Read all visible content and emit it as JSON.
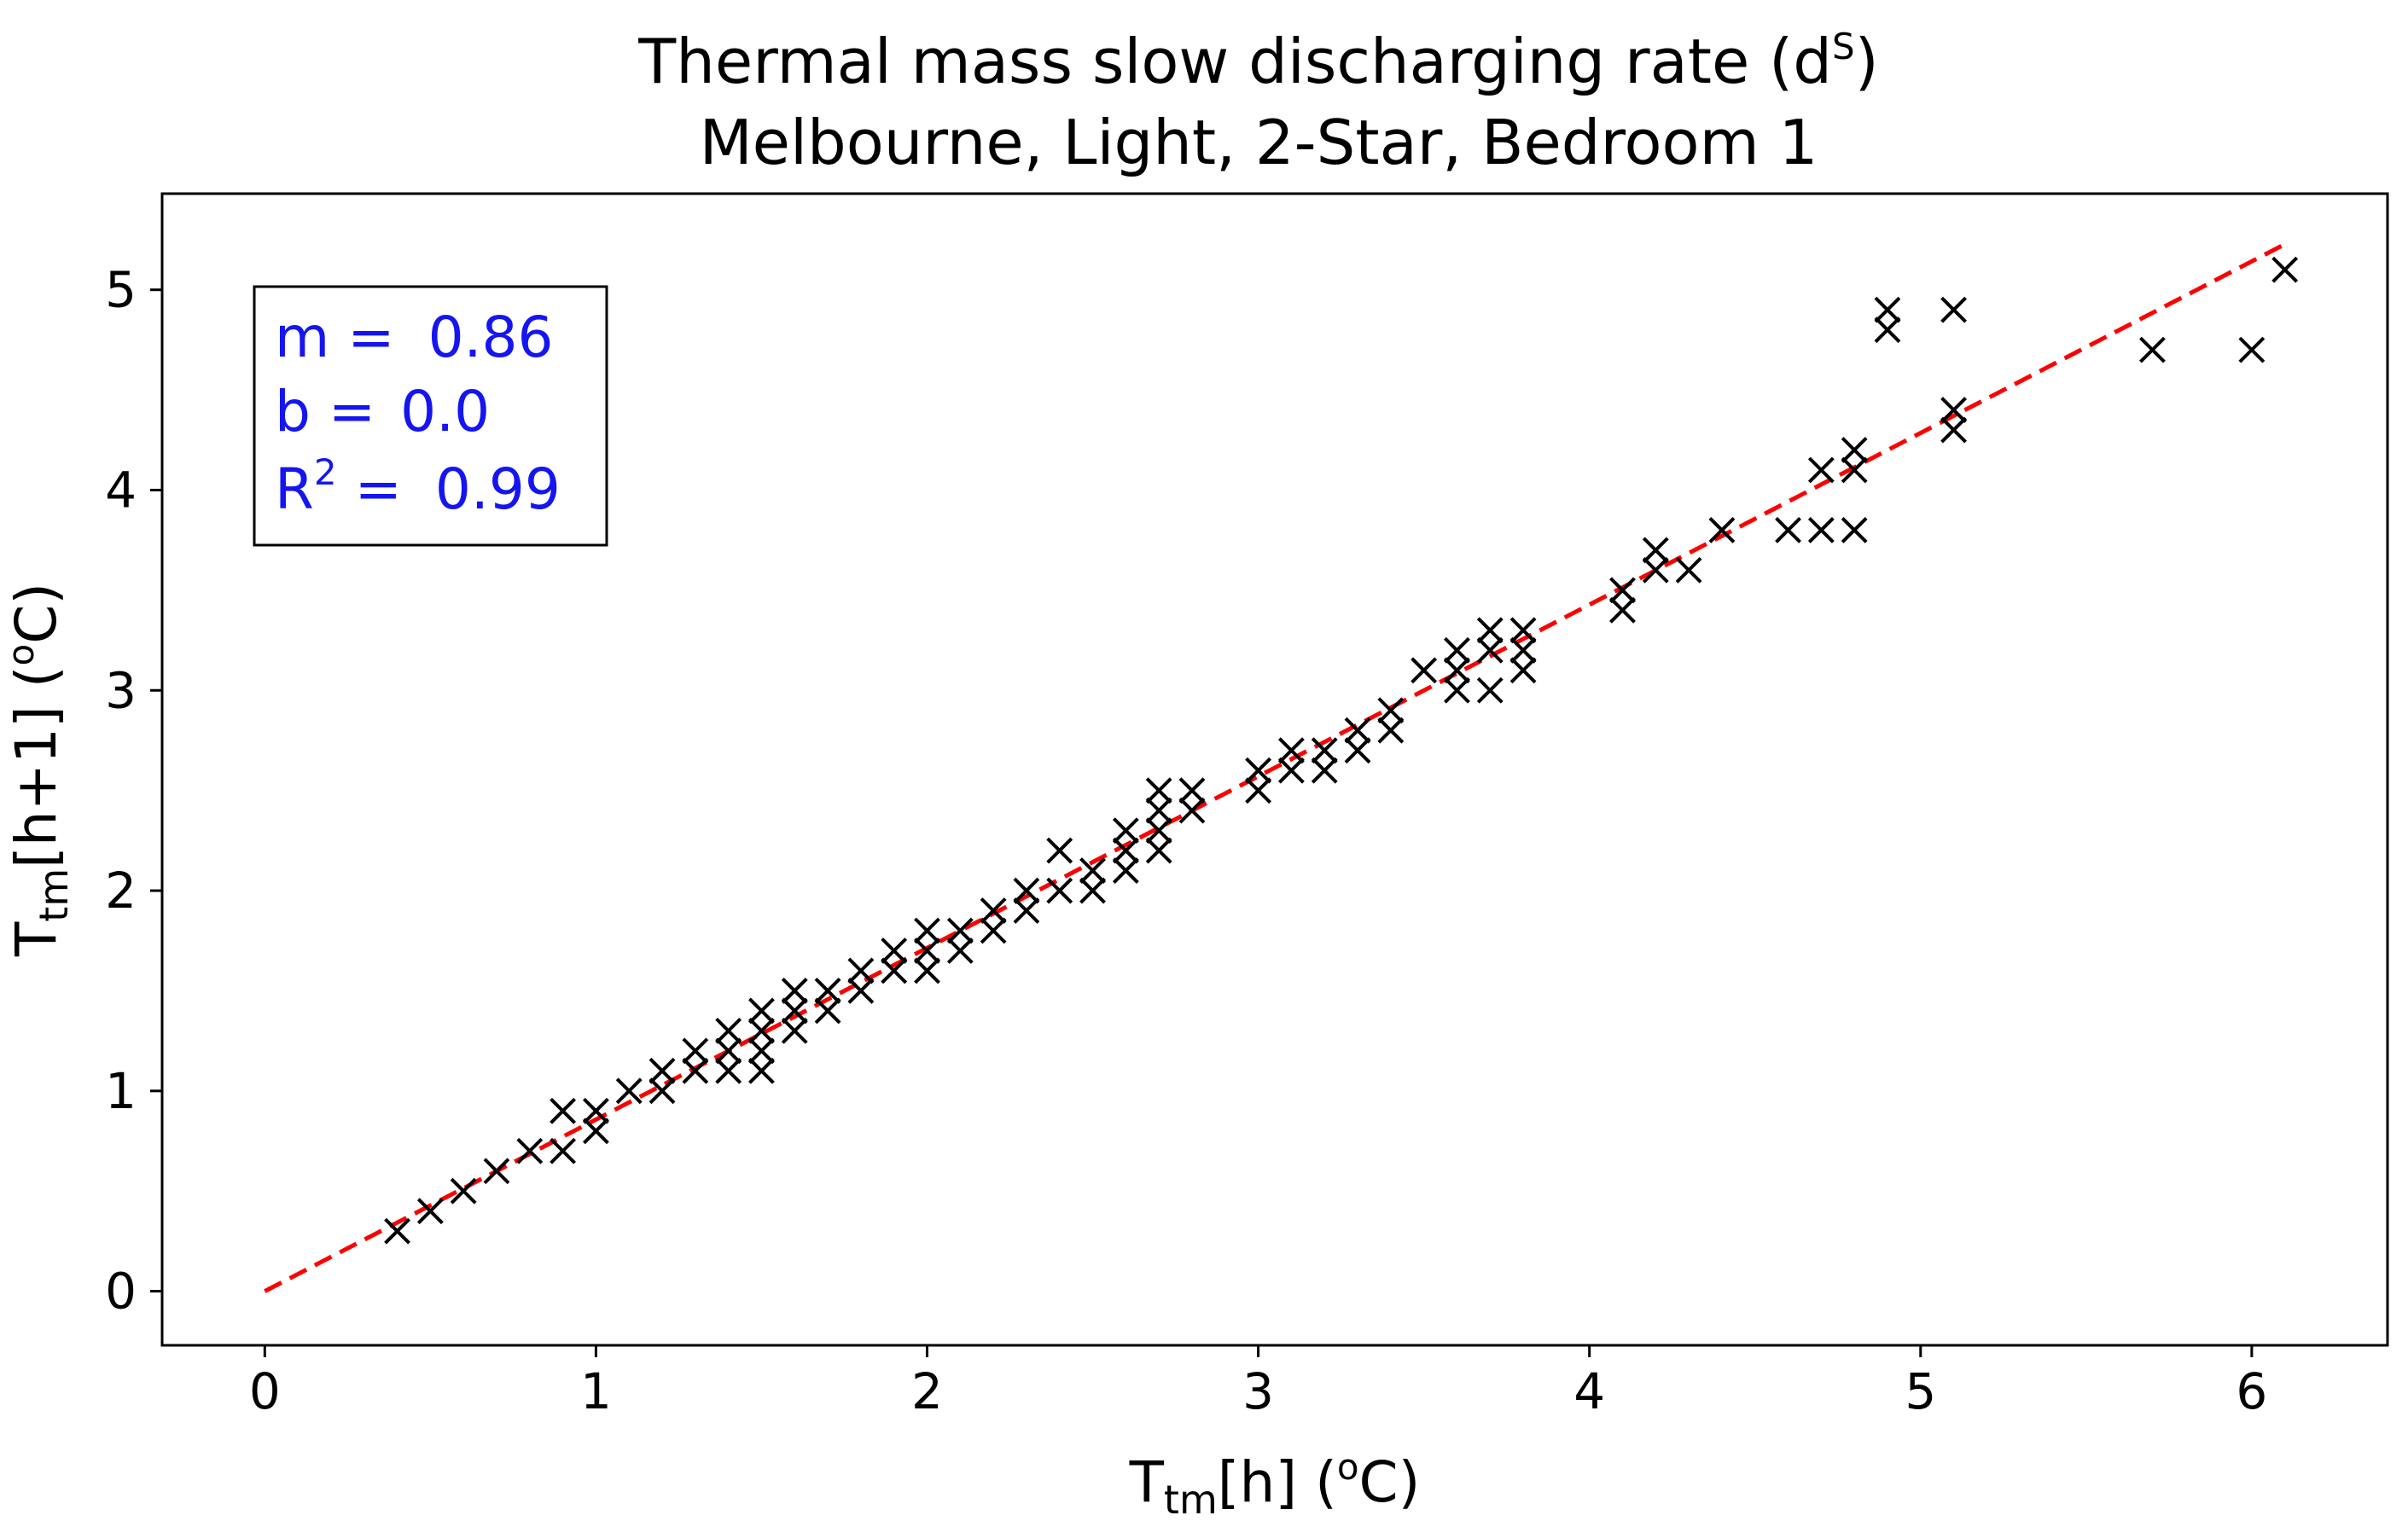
{
  "chart_data": {
    "type": "scatter",
    "title": {
      "line1_text": "Thermal mass slow discharging rate (d",
      "line1_sup": "S",
      "line1_close": ")",
      "line2": "Melbourne, Light, 2-Star, Bedroom 1"
    },
    "xlabel": {
      "main": "T",
      "sub": "tm",
      "rest": "[h] (",
      "sup": "o",
      "end": "C)"
    },
    "ylabel": {
      "main": "T",
      "sub": "tm",
      "rest": "[h+1] (",
      "sup": "o",
      "end": "C)"
    },
    "xlim": [
      -0.31,
      6.41
    ],
    "ylim": [
      -0.27,
      5.48
    ],
    "xticks": [
      0,
      1,
      2,
      3,
      4,
      5,
      6
    ],
    "yticks": [
      0,
      1,
      2,
      3,
      4,
      5
    ],
    "stats": {
      "m_label": "m = ",
      "m_value": "0.86",
      "b_label": "b = ",
      "b_value": "0.0",
      "r_label": "R",
      "r_sup": "2",
      "r_eq": " = ",
      "r_value": "0.99"
    },
    "fit_line": {
      "slope": 0.857,
      "intercept": 0.0,
      "x_start": 0.0,
      "x_end": 6.1,
      "color": "#ff0000"
    },
    "marker_color": "#000000",
    "points": [
      [
        0.4,
        0.3
      ],
      [
        0.5,
        0.4
      ],
      [
        0.6,
        0.5
      ],
      [
        0.7,
        0.6
      ],
      [
        0.8,
        0.7
      ],
      [
        0.9,
        0.7
      ],
      [
        0.9,
        0.9
      ],
      [
        1.0,
        0.8
      ],
      [
        1.0,
        0.9
      ],
      [
        1.1,
        1.0
      ],
      [
        1.2,
        1.0
      ],
      [
        1.2,
        1.1
      ],
      [
        1.3,
        1.1
      ],
      [
        1.3,
        1.2
      ],
      [
        1.4,
        1.1
      ],
      [
        1.4,
        1.2
      ],
      [
        1.4,
        1.3
      ],
      [
        1.5,
        1.1
      ],
      [
        1.5,
        1.2
      ],
      [
        1.5,
        1.3
      ],
      [
        1.5,
        1.4
      ],
      [
        1.6,
        1.3
      ],
      [
        1.6,
        1.4
      ],
      [
        1.6,
        1.5
      ],
      [
        1.7,
        1.4
      ],
      [
        1.7,
        1.5
      ],
      [
        1.8,
        1.5
      ],
      [
        1.8,
        1.6
      ],
      [
        1.9,
        1.6
      ],
      [
        1.9,
        1.7
      ],
      [
        2.0,
        1.6
      ],
      [
        2.0,
        1.7
      ],
      [
        2.0,
        1.8
      ],
      [
        2.1,
        1.7
      ],
      [
        2.1,
        1.8
      ],
      [
        2.2,
        1.8
      ],
      [
        2.2,
        1.9
      ],
      [
        2.3,
        1.9
      ],
      [
        2.3,
        2.0
      ],
      [
        2.4,
        2.0
      ],
      [
        2.4,
        2.2
      ],
      [
        2.5,
        2.0
      ],
      [
        2.5,
        2.1
      ],
      [
        2.6,
        2.1
      ],
      [
        2.6,
        2.2
      ],
      [
        2.6,
        2.3
      ],
      [
        2.7,
        2.2
      ],
      [
        2.7,
        2.3
      ],
      [
        2.7,
        2.4
      ],
      [
        2.7,
        2.5
      ],
      [
        2.8,
        2.4
      ],
      [
        2.8,
        2.5
      ],
      [
        3.0,
        2.5
      ],
      [
        3.0,
        2.6
      ],
      [
        3.1,
        2.6
      ],
      [
        3.1,
        2.7
      ],
      [
        3.2,
        2.6
      ],
      [
        3.2,
        2.7
      ],
      [
        3.3,
        2.7
      ],
      [
        3.3,
        2.8
      ],
      [
        3.4,
        2.8
      ],
      [
        3.4,
        2.9
      ],
      [
        3.5,
        3.1
      ],
      [
        3.6,
        3.0
      ],
      [
        3.6,
        3.1
      ],
      [
        3.6,
        3.2
      ],
      [
        3.7,
        3.0
      ],
      [
        3.7,
        3.2
      ],
      [
        3.7,
        3.3
      ],
      [
        3.8,
        3.1
      ],
      [
        3.8,
        3.2
      ],
      [
        3.8,
        3.3
      ],
      [
        4.1,
        3.4
      ],
      [
        4.1,
        3.5
      ],
      [
        4.2,
        3.6
      ],
      [
        4.2,
        3.7
      ],
      [
        4.3,
        3.6
      ],
      [
        4.4,
        3.8
      ],
      [
        4.6,
        3.8
      ],
      [
        4.7,
        3.8
      ],
      [
        4.7,
        4.1
      ],
      [
        4.8,
        3.8
      ],
      [
        4.8,
        4.1
      ],
      [
        4.8,
        4.2
      ],
      [
        4.9,
        4.8
      ],
      [
        4.9,
        4.9
      ],
      [
        5.1,
        4.3
      ],
      [
        5.1,
        4.4
      ],
      [
        5.1,
        4.9
      ],
      [
        5.7,
        4.7
      ],
      [
        6.0,
        4.7
      ],
      [
        6.1,
        5.1
      ]
    ]
  }
}
